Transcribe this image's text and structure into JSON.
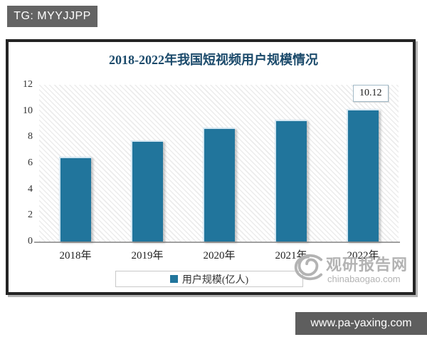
{
  "overlays": {
    "tg_badge": "TG: MYYJJPP",
    "footer_url": "www.pa-yaxing.com",
    "watermark": {
      "name": "观研报告网",
      "domain": "chinabaogao.com"
    }
  },
  "chart_data": {
    "type": "bar",
    "title": "2018-2022年我国短视频用户规模情况",
    "categories": [
      "2018年",
      "2019年",
      "2020年",
      "2021年",
      "2022年"
    ],
    "series": [
      {
        "name": "用户规模(亿人)",
        "values": [
          6.48,
          7.73,
          8.73,
          9.34,
          10.12
        ],
        "color": "#21759c"
      }
    ],
    "annotated_point": {
      "category": "2022年",
      "label": "10.12"
    },
    "ylim": [
      0,
      12
    ],
    "yticks": [
      0,
      2,
      4,
      6,
      8,
      10,
      12
    ],
    "xlabel": "",
    "ylabel": "",
    "legend": {
      "position": "bottom",
      "entries": [
        "用户规模(亿人)"
      ]
    },
    "grid": false,
    "plot_background": "diagonal-hatch"
  },
  "colors": {
    "bar": "#21759c",
    "title": "#1b4a6b",
    "axis_text": "#333333",
    "watermark": "#b3b3b3",
    "badge_background": "#646464",
    "frame_border": "#242424"
  }
}
